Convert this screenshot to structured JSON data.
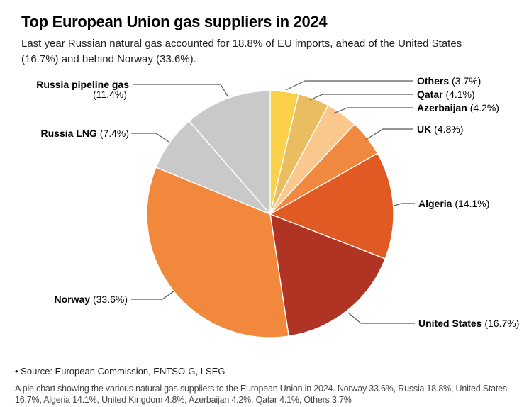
{
  "header": {
    "title": "Top European Union gas suppliers in 2024",
    "subtitle": "Last year Russian natural gas accounted for 18.8% of EU imports, ahead of the United States (16.7%) and behind Norway (33.6%)."
  },
  "footer": {
    "source": "• Source: European Commission, ENTSO-G, LSEG",
    "alt_text": "A pie chart showing the various natural gas suppliers to the European Union in 2024. Norway 33.6%, Russia 18.8%, United States 16.7%, Algeria 14.1%, United Kingdom 4.8%, Azerbaijan 4.2%, Qatar 4.1%, Others 3.7%"
  },
  "chart_data": {
    "type": "pie",
    "title": "Top European Union gas suppliers in 2024",
    "unit": "%",
    "start_angle_deg": 0,
    "direction": "clockwise",
    "label_format": "{label} ({value}%)",
    "legend_position": "callout-labels",
    "slices": [
      {
        "label": "Others",
        "value": 3.7,
        "color": "#FBD14A"
      },
      {
        "label": "Qatar",
        "value": 4.1,
        "color": "#EABD61"
      },
      {
        "label": "Azerbaijan",
        "value": 4.2,
        "color": "#FAC88C"
      },
      {
        "label": "UK",
        "value": 4.8,
        "color": "#F0893F"
      },
      {
        "label": "Algeria",
        "value": 14.1,
        "color": "#E15A24"
      },
      {
        "label": "United States",
        "value": 16.7,
        "color": "#B03423"
      },
      {
        "label": "Norway",
        "value": 33.6,
        "color": "#F1883B"
      },
      {
        "label": "Russia LNG",
        "value": 7.4,
        "color": "#C9C9C9"
      },
      {
        "label": "Russia pipeline gas",
        "value": 11.4,
        "color": "#C9C9C9"
      }
    ],
    "slice_border_color": "#FFFFFF",
    "leader_line_color": "#58595B",
    "label_text_color": "#000000"
  }
}
